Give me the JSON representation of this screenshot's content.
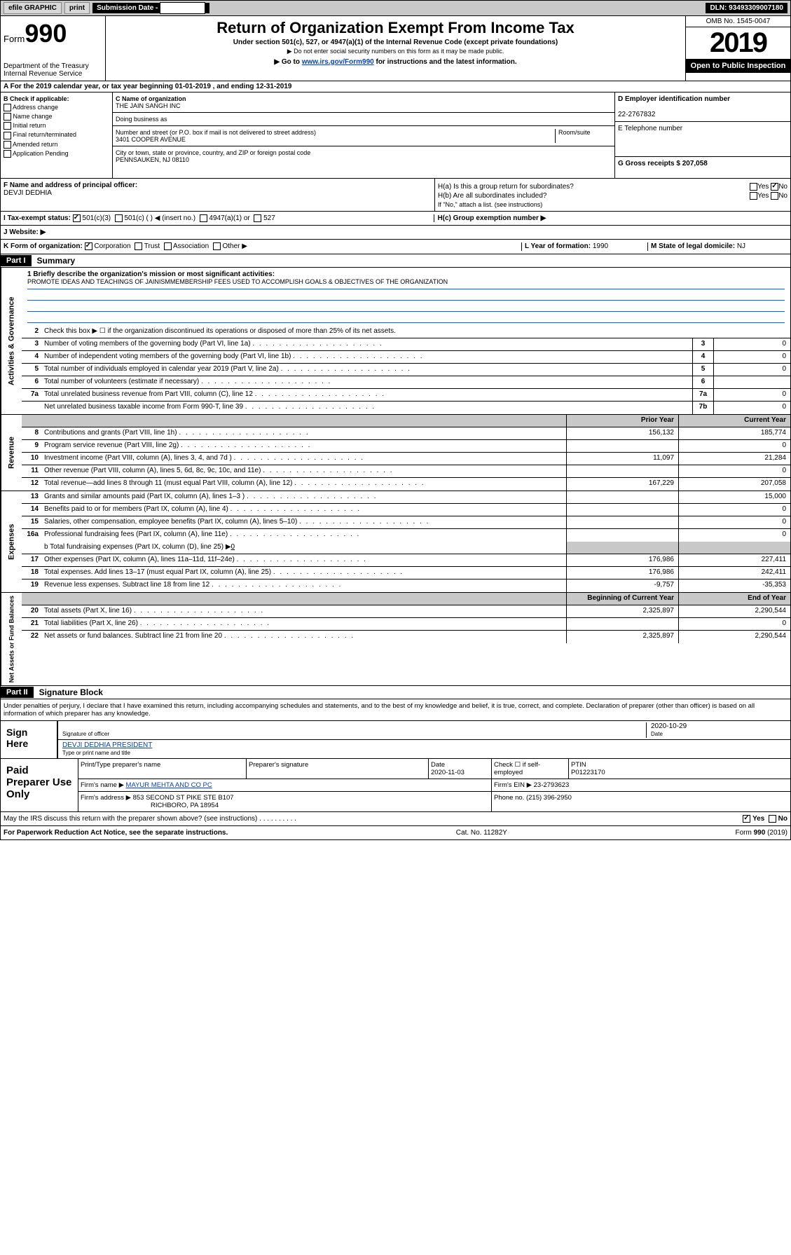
{
  "topbar": {
    "efile": "efile GRAPHIC",
    "print": "print",
    "sub_date_label": "Submission Date - ",
    "sub_date": "2020-11-03",
    "dln": "DLN: 93493309007180"
  },
  "header": {
    "form_word": "Form",
    "form_num": "990",
    "dept": "Department of the Treasury\nInternal Revenue Service",
    "title": "Return of Organization Exempt From Income Tax",
    "sub": "Under section 501(c), 527, or 4947(a)(1) of the Internal Revenue Code (except private foundations)",
    "sub2": "▶ Do not enter social security numbers on this form as it may be made public.",
    "goto_pre": "▶ Go to ",
    "goto_link": "www.irs.gov/Form990",
    "goto_post": " for instructions and the latest information.",
    "omb": "OMB No. 1545-0047",
    "year": "2019",
    "open": "Open to Public Inspection"
  },
  "row_a": "A For the 2019 calendar year, or tax year beginning 01-01-2019    , and ending 12-31-2019",
  "col_b": {
    "hdr": "B Check if applicable:",
    "items": [
      "Address change",
      "Name change",
      "Initial return",
      "Final return/terminated",
      "Amended return",
      "Application Pending"
    ]
  },
  "org": {
    "name_label": "C Name of organization",
    "name": "THE JAIN SANGH INC",
    "dba_label": "Doing business as",
    "dba": "",
    "addr_label": "Number and street (or P.O. box if mail is not delivered to street address)",
    "room_label": "Room/suite",
    "addr": "3401 COOPER AVENUE",
    "city_label": "City or town, state or province, country, and ZIP or foreign postal code",
    "city": "PENNSAUKEN, NJ  08110"
  },
  "ein": {
    "label": "D Employer identification number",
    "val": "22-2767832"
  },
  "tel": {
    "label": "E Telephone number",
    "val": ""
  },
  "gross": {
    "label": "G Gross receipts $ ",
    "val": "207,058"
  },
  "f": {
    "label": "F  Name and address of principal officer:",
    "name": "DEVJI DEDHIA"
  },
  "h": {
    "a": "H(a)  Is this a group return for subordinates?",
    "b": "H(b)  Are all subordinates included?",
    "b_note": "If \"No,\" attach a list. (see instructions)",
    "c": "H(c)  Group exemption number ▶",
    "yes": "Yes",
    "no": "No"
  },
  "i": {
    "label": "I    Tax-exempt status:",
    "opts": [
      "501(c)(3)",
      "501(c) (  ) ◀ (insert no.)",
      "4947(a)(1) or",
      "527"
    ]
  },
  "j": {
    "label": "J    Website: ▶"
  },
  "k": {
    "label": "K Form of organization:",
    "opts": [
      "Corporation",
      "Trust",
      "Association",
      "Other ▶"
    ],
    "l": "L Year of formation: ",
    "l_val": "1990",
    "m": "M State of legal domicile: ",
    "m_val": "NJ"
  },
  "part1": {
    "hdr": "Part I",
    "title": "Summary"
  },
  "gov": {
    "label": "Activities & Governance",
    "l1": "1  Briefly describe the organization's mission or most significant activities:",
    "l1_text": "PROMOTE IDEAS AND TEACHINGS OF JAINISMMEMBERSHIP FEES USED TO ACCOMPLISH GOALS & OBJECTIVES OF THE ORGANIZATION",
    "l2": "Check this box ▶ ☐  if the organization discontinued its operations or disposed of more than 25% of its net assets.",
    "lines": [
      {
        "n": "3",
        "t": "Number of voting members of the governing body (Part VI, line 1a)",
        "b": "3",
        "v": "0"
      },
      {
        "n": "4",
        "t": "Number of independent voting members of the governing body (Part VI, line 1b)",
        "b": "4",
        "v": "0"
      },
      {
        "n": "5",
        "t": "Total number of individuals employed in calendar year 2019 (Part V, line 2a)",
        "b": "5",
        "v": "0"
      },
      {
        "n": "6",
        "t": "Total number of volunteers (estimate if necessary)",
        "b": "6",
        "v": ""
      },
      {
        "n": "7a",
        "t": "Total unrelated business revenue from Part VIII, column (C), line 12",
        "b": "7a",
        "v": "0"
      },
      {
        "n": "",
        "t": "Net unrelated business taxable income from Form 990-T, line 39",
        "b": "7b",
        "v": "0"
      }
    ]
  },
  "rev": {
    "label": "Revenue",
    "hdr_prior": "Prior Year",
    "hdr_curr": "Current Year",
    "lines": [
      {
        "n": "8",
        "t": "Contributions and grants (Part VIII, line 1h)",
        "p": "156,132",
        "c": "185,774"
      },
      {
        "n": "9",
        "t": "Program service revenue (Part VIII, line 2g)",
        "p": "",
        "c": "0"
      },
      {
        "n": "10",
        "t": "Investment income (Part VIII, column (A), lines 3, 4, and 7d )",
        "p": "11,097",
        "c": "21,284"
      },
      {
        "n": "11",
        "t": "Other revenue (Part VIII, column (A), lines 5, 6d, 8c, 9c, 10c, and 11e)",
        "p": "",
        "c": "0"
      },
      {
        "n": "12",
        "t": "Total revenue—add lines 8 through 11 (must equal Part VIII, column (A), line 12)",
        "p": "167,229",
        "c": "207,058"
      }
    ]
  },
  "exp": {
    "label": "Expenses",
    "lines": [
      {
        "n": "13",
        "t": "Grants and similar amounts paid (Part IX, column (A), lines 1–3 )",
        "p": "",
        "c": "15,000"
      },
      {
        "n": "14",
        "t": "Benefits paid to or for members (Part IX, column (A), line 4)",
        "p": "",
        "c": "0"
      },
      {
        "n": "15",
        "t": "Salaries, other compensation, employee benefits (Part IX, column (A), lines 5–10)",
        "p": "",
        "c": "0"
      },
      {
        "n": "16a",
        "t": "Professional fundraising fees (Part IX, column (A), line 11e)",
        "p": "",
        "c": "0"
      }
    ],
    "l16b": "b  Total fundraising expenses (Part IX, column (D), line 25) ▶",
    "l16b_val": "0",
    "lines2": [
      {
        "n": "17",
        "t": "Other expenses (Part IX, column (A), lines 11a–11d, 11f–24e)",
        "p": "176,986",
        "c": "227,411"
      },
      {
        "n": "18",
        "t": "Total expenses. Add lines 13–17 (must equal Part IX, column (A), line 25)",
        "p": "176,986",
        "c": "242,411"
      },
      {
        "n": "19",
        "t": "Revenue less expenses. Subtract line 18 from line 12",
        "p": "-9,757",
        "c": "-35,353"
      }
    ]
  },
  "net": {
    "label": "Net Assets or Fund Balances",
    "hdr_beg": "Beginning of Current Year",
    "hdr_end": "End of Year",
    "lines": [
      {
        "n": "20",
        "t": "Total assets (Part X, line 16)",
        "p": "2,325,897",
        "c": "2,290,544"
      },
      {
        "n": "21",
        "t": "Total liabilities (Part X, line 26)",
        "p": "",
        "c": "0"
      },
      {
        "n": "22",
        "t": "Net assets or fund balances. Subtract line 21 from line 20",
        "p": "2,325,897",
        "c": "2,290,544"
      }
    ]
  },
  "part2": {
    "hdr": "Part II",
    "title": "Signature Block"
  },
  "sig": {
    "perjury": "Under penalties of perjury, I declare that I have examined this return, including accompanying schedules and statements, and to the best of my knowledge and belief, it is true, correct, and complete. Declaration of preparer (other than officer) is based on all information of which preparer has any knowledge.",
    "sign_here": "Sign Here",
    "sig_officer": "Signature of officer",
    "date": "2020-10-29",
    "date_label": "Date",
    "name": "DEVJI DEDHIA  PRESIDENT",
    "name_label": "Type or print name and title"
  },
  "paid": {
    "label": "Paid Preparer Use Only",
    "hdr_name": "Print/Type preparer's name",
    "hdr_sig": "Preparer's signature",
    "hdr_date": "Date",
    "date": "2020-11-03",
    "check_label": "Check ☐ if self-employed",
    "ptin_label": "PTIN",
    "ptin": "P01223170",
    "firm_name_label": "Firm's name     ▶",
    "firm_name": "MAYUR MEHTA AND CO PC",
    "firm_ein_label": "Firm's EIN ▶",
    "firm_ein": "23-2793623",
    "firm_addr_label": "Firm's address ▶",
    "firm_addr": "853 SECOND ST PIKE STE B107",
    "firm_city": "RICHBORO, PA  18954",
    "phone_label": "Phone no. ",
    "phone": "(215) 396-2950"
  },
  "discuss": "May the IRS discuss this return with the preparer shown above? (see instructions)",
  "footer": {
    "left": "For Paperwork Reduction Act Notice, see the separate instructions.",
    "mid": "Cat. No. 11282Y",
    "right": "Form 990 (2019)"
  }
}
